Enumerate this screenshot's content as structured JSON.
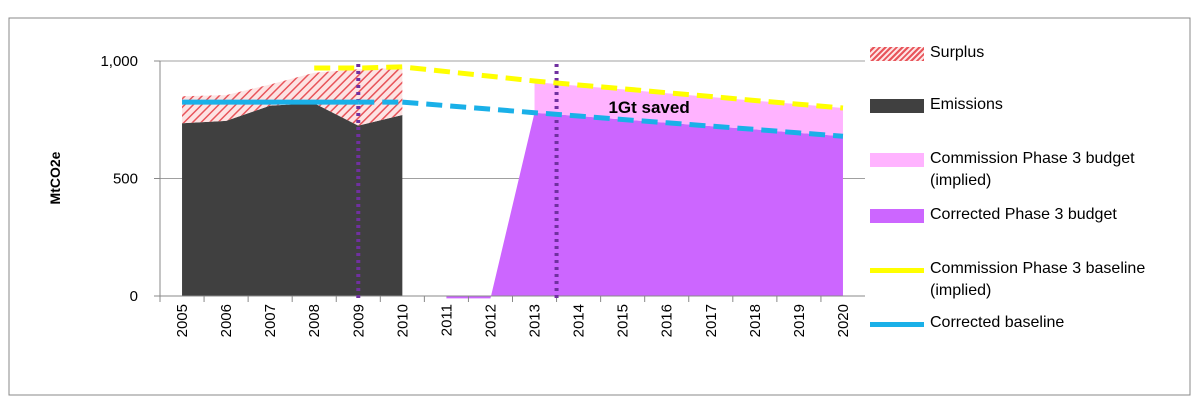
{
  "chart_data": {
    "type": "area",
    "y_label": "MtCO2e",
    "categories": [
      "2005",
      "2006",
      "2007",
      "2008",
      "2009",
      "2010",
      "2011",
      "2012",
      "2013",
      "2014",
      "2015",
      "2016",
      "2017",
      "2018",
      "2019",
      "2020"
    ],
    "ylim": [
      0,
      1000
    ],
    "yticks": [
      0,
      500,
      {
        "value": 1000,
        "label": "1,000"
      }
    ],
    "grid": true,
    "annotation": "1Gt saved",
    "series": [
      {
        "name": "Surplus",
        "kind": "area",
        "pattern": "hatch",
        "color": "#e8545a",
        "stacked_on": "Emissions",
        "values": [
          115,
          110,
          90,
          130,
          240,
          200,
          null,
          null,
          null,
          null,
          null,
          null,
          null,
          null,
          null,
          null
        ]
      },
      {
        "name": "Emissions",
        "kind": "area",
        "color": "#404040",
        "values": [
          735,
          745,
          810,
          820,
          725,
          770,
          null,
          null,
          null,
          null,
          null,
          null,
          null,
          null,
          null,
          null
        ]
      },
      {
        "name": "Commission Phase 3 budget (implied)",
        "kind": "area",
        "color": "#ffb3ff",
        "stacked_on": "Corrected Phase 3 budget",
        "values": [
          null,
          null,
          null,
          null,
          null,
          null,
          null,
          null,
          130,
          128,
          128,
          126,
          124,
          122,
          122,
          120
        ]
      },
      {
        "name": "Corrected Phase 3 budget",
        "kind": "area",
        "color": "#cc66ff",
        "values": [
          null,
          null,
          null,
          null,
          null,
          null,
          -10,
          -10,
          780,
          766,
          751,
          737,
          723,
          709,
          694,
          680
        ]
      },
      {
        "name": "Commission Phase 3 baseline (implied)",
        "kind": "line",
        "dashed": true,
        "color": "#ffff00",
        "values": [
          null,
          null,
          null,
          970,
          970,
          975,
          955,
          935,
          915,
          898,
          882,
          865,
          849,
          832,
          816,
          800
        ]
      },
      {
        "name": "Corrected baseline",
        "kind": "line",
        "dashed": true,
        "solid_through": "2009",
        "color": "#1ab0e8",
        "values": [
          825,
          825,
          825,
          825,
          825,
          825,
          810,
          795,
          780,
          766,
          751,
          737,
          723,
          709,
          694,
          680
        ]
      }
    ]
  }
}
